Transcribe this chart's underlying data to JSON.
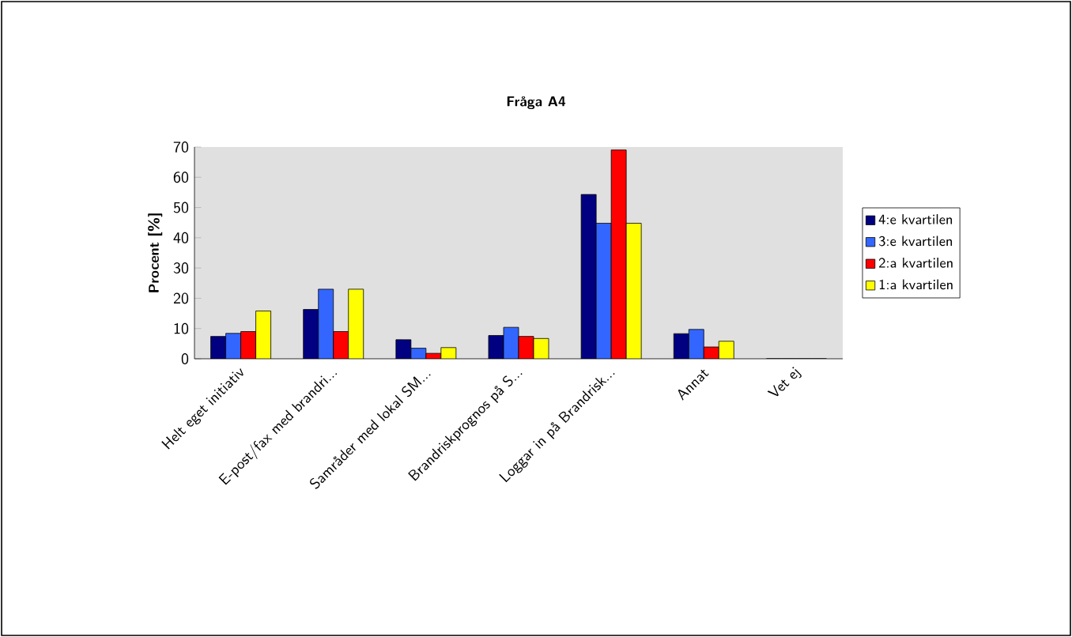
{
  "chart_data": {
    "type": "bar",
    "title": "Fråga A4",
    "ylabel": "Procent [%]",
    "categories": [
      "Helt eget initiativ",
      "E-post/fax med brandri...",
      "Samråder med lokal SM...",
      "Brandriskprognos på S...",
      "Loggar in på Brandrisk...",
      "Annat",
      "Vet ej"
    ],
    "series": [
      {
        "name": "4:e kvartilen",
        "color": "#000080",
        "values": [
          7.4,
          16.3,
          6.3,
          7.7,
          54.3,
          8.3,
          0
        ]
      },
      {
        "name": "3:e kvartilen",
        "color": "#3366ff",
        "values": [
          8.4,
          23,
          3.5,
          10.4,
          44.8,
          9.7,
          0
        ]
      },
      {
        "name": "2:a kvartilen",
        "color": "#ff0000",
        "values": [
          9,
          9,
          1.8,
          7.4,
          69,
          3.9,
          0
        ]
      },
      {
        "name": "1:a kvartilen",
        "color": "#ffff00",
        "values": [
          15.8,
          23,
          3.7,
          6.7,
          44.8,
          5.8,
          0
        ]
      }
    ],
    "ylim": [
      0,
      70
    ],
    "yticks": [
      0,
      10,
      20,
      30,
      40,
      50,
      60,
      70
    ],
    "grid": false,
    "legend": "right"
  }
}
